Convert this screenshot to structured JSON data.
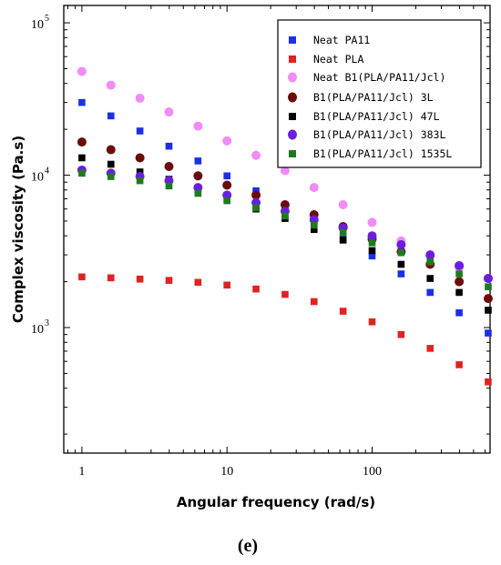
{
  "chart_data": {
    "type": "scatter",
    "xscale": "log",
    "yscale": "log",
    "xlim": [
      0.75,
      650
    ],
    "ylim": [
      150,
      130000
    ],
    "xlabel": "Angular frequency (rad/s)",
    "ylabel": "Complex viscosity (Pa.s)",
    "legend_position": "top-right",
    "panel_label": "(e)",
    "x_ticks": [
      {
        "value": 1,
        "label": "1"
      },
      {
        "value": 10,
        "label": "10"
      },
      {
        "value": 100,
        "label": "100"
      }
    ],
    "y_ticks": [
      {
        "value": 1000,
        "base": "10",
        "exp": "3"
      },
      {
        "value": 10000,
        "base": "10",
        "exp": "4"
      },
      {
        "value": 100000,
        "base": "10",
        "exp": "5"
      }
    ],
    "x": [
      1,
      1.585,
      2.512,
      3.981,
      6.31,
      10,
      15.85,
      25.12,
      39.81,
      63.1,
      100,
      158.5,
      251.2,
      398.1,
      631
    ],
    "series": [
      {
        "name": "Neat PA11",
        "color": "#1b2ee8",
        "marker": "square",
        "values": [
          30000,
          24500,
          19500,
          15500,
          12400,
          9900,
          7900,
          6300,
          4900,
          3800,
          2950,
          2250,
          1700,
          1250,
          920
        ]
      },
      {
        "name": "Neat PLA",
        "color": "#e02222",
        "marker": "square",
        "values": [
          2150,
          2120,
          2080,
          2040,
          1980,
          1900,
          1790,
          1650,
          1480,
          1280,
          1090,
          900,
          730,
          570,
          440
        ]
      },
      {
        "name": "Neat B1(PLA/PA11/Jcl)",
        "color": "#f08cf5",
        "marker": "circle",
        "values": [
          48000,
          39000,
          32000,
          26000,
          21000,
          16800,
          13500,
          10700,
          8300,
          6400,
          4900,
          3700,
          2950,
          2500,
          2100
        ]
      },
      {
        "name": "B1(PLA/PA11/Jcl) 3L",
        "color": "#6b0c0c",
        "marker": "circle",
        "values": [
          16500,
          14700,
          13000,
          11400,
          9900,
          8600,
          7400,
          6400,
          5500,
          4600,
          3800,
          3150,
          2600,
          2000,
          1550
        ]
      },
      {
        "name": "B1(PLA/PA11/Jcl) 47L",
        "color": "#000000",
        "marker": "square",
        "values": [
          13000,
          11800,
          10500,
          9400,
          8100,
          7000,
          6000,
          5200,
          4400,
          3750,
          3200,
          2600,
          2100,
          1700,
          1300
        ]
      },
      {
        "name": "B1(PLA/PA11/Jcl) 383L",
        "color": "#6a1ee0",
        "marker": "circle",
        "values": [
          10800,
          10300,
          9800,
          9200,
          8300,
          7400,
          6600,
          5800,
          5100,
          4500,
          4000,
          3500,
          3000,
          2550,
          2100
        ]
      },
      {
        "name": "B1(PLA/PA11/Jcl) 1535L",
        "color": "#1f7a1f",
        "marker": "square",
        "values": [
          10300,
          9800,
          9200,
          8500,
          7600,
          6800,
          6100,
          5400,
          4700,
          4200,
          3600,
          3100,
          2700,
          2250,
          1850
        ]
      }
    ]
  }
}
